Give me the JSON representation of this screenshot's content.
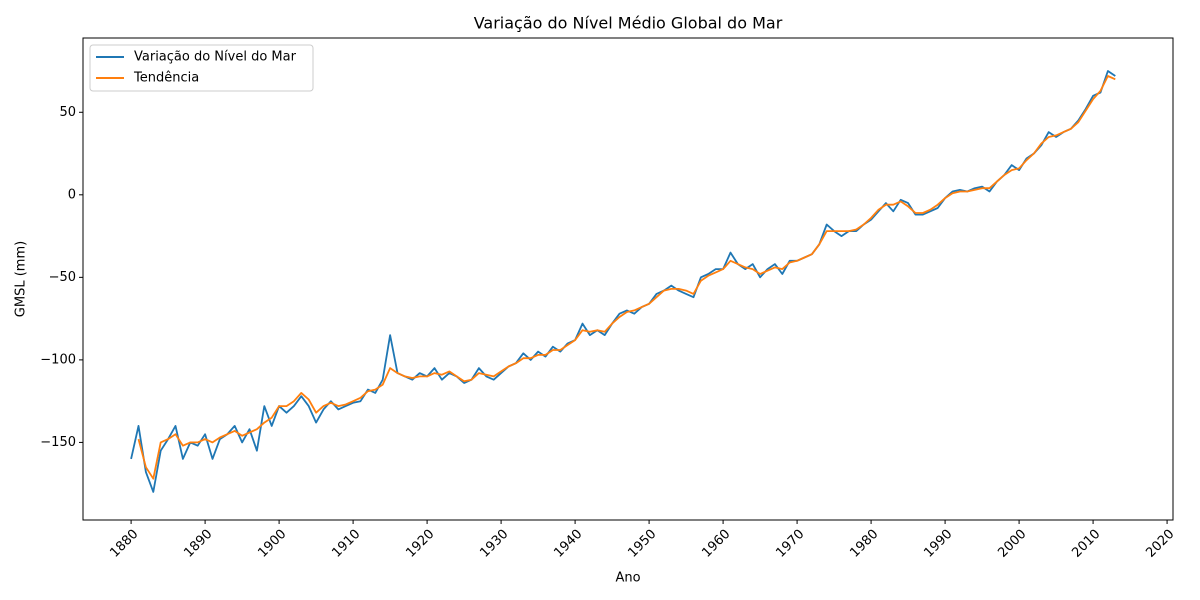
{
  "chart_data": {
    "type": "line",
    "title": "Variação do Nível Médio Global do Mar",
    "x_label": "Ano",
    "y_label": "GMSL (mm)",
    "x": [
      1880,
      1881,
      1882,
      1883,
      1884,
      1885,
      1886,
      1887,
      1888,
      1889,
      1890,
      1891,
      1892,
      1893,
      1894,
      1895,
      1896,
      1897,
      1898,
      1899,
      1900,
      1901,
      1902,
      1903,
      1904,
      1905,
      1906,
      1907,
      1908,
      1909,
      1910,
      1911,
      1912,
      1913,
      1914,
      1915,
      1916,
      1917,
      1918,
      1919,
      1920,
      1921,
      1922,
      1923,
      1924,
      1925,
      1926,
      1927,
      1928,
      1929,
      1930,
      1931,
      1932,
      1933,
      1934,
      1935,
      1936,
      1937,
      1938,
      1939,
      1940,
      1941,
      1942,
      1943,
      1944,
      1945,
      1946,
      1947,
      1948,
      1949,
      1950,
      1951,
      1952,
      1953,
      1954,
      1955,
      1956,
      1957,
      1958,
      1959,
      1960,
      1961,
      1962,
      1963,
      1964,
      1965,
      1966,
      1967,
      1968,
      1969,
      1970,
      1971,
      1972,
      1973,
      1974,
      1975,
      1976,
      1977,
      1978,
      1979,
      1980,
      1981,
      1982,
      1983,
      1984,
      1985,
      1986,
      1987,
      1988,
      1989,
      1990,
      1991,
      1992,
      1993,
      1994,
      1995,
      1996,
      1997,
      1998,
      1999,
      2000,
      2001,
      2002,
      2003,
      2004,
      2005,
      2006,
      2007,
      2008,
      2009,
      2010,
      2011,
      2012,
      2013
    ],
    "series": [
      {
        "name": "Variação do Nível do Mar",
        "color": "#1f77b4",
        "values": [
          -160,
          -140,
          -168,
          -180,
          -155,
          -148,
          -140,
          -160,
          -150,
          -152,
          -145,
          -160,
          -148,
          -145,
          -140,
          -150,
          -142,
          -155,
          -128,
          -140,
          -128,
          -132,
          -128,
          -122,
          -128,
          -138,
          -130,
          -125,
          -130,
          -128,
          -126,
          -125,
          -118,
          -120,
          -112,
          -85,
          -108,
          -110,
          -112,
          -108,
          -110,
          -105,
          -112,
          -108,
          -110,
          -114,
          -112,
          -105,
          -110,
          -112,
          -108,
          -104,
          -102,
          -96,
          -100,
          -95,
          -98,
          -92,
          -95,
          -90,
          -88,
          -78,
          -85,
          -82,
          -85,
          -78,
          -72,
          -70,
          -72,
          -68,
          -66,
          -60,
          -58,
          -55,
          -58,
          -60,
          -62,
          -50,
          -48,
          -45,
          -45,
          -35,
          -42,
          -45,
          -42,
          -50,
          -45,
          -42,
          -48,
          -40,
          -40,
          -38,
          -36,
          -30,
          -18,
          -22,
          -25,
          -22,
          -22,
          -18,
          -15,
          -10,
          -5,
          -10,
          -3,
          -5,
          -12,
          -12,
          -10,
          -8,
          -2,
          2,
          3,
          2,
          4,
          5,
          2,
          8,
          12,
          18,
          15,
          22,
          25,
          30,
          38,
          35,
          38,
          40,
          45,
          52,
          60,
          62,
          75,
          72
        ]
      },
      {
        "name": "Tendência",
        "color": "#ff7f0e",
        "values": [
          null,
          -148,
          -165,
          -172,
          -150,
          -148,
          -145,
          -152,
          -150,
          -150,
          -148,
          -150,
          -147,
          -145,
          -143,
          -146,
          -144,
          -142,
          -138,
          -135,
          -128,
          -128,
          -125,
          -120,
          -124,
          -132,
          -128,
          -126,
          -128,
          -127,
          -125,
          -123,
          -119,
          -118,
          -115,
          -105,
          -108,
          -110,
          -111,
          -110,
          -110,
          -108,
          -109,
          -107,
          -110,
          -113,
          -112,
          -108,
          -109,
          -110,
          -107,
          -104,
          -102,
          -99,
          -99,
          -97,
          -97,
          -94,
          -94,
          -91,
          -88,
          -82,
          -83,
          -82,
          -83,
          -78,
          -74,
          -71,
          -70,
          -68,
          -66,
          -62,
          -58,
          -57,
          -57,
          -58,
          -60,
          -52,
          -49,
          -47,
          -45,
          -40,
          -42,
          -44,
          -45,
          -48,
          -46,
          -44,
          -45,
          -41,
          -40,
          -38,
          -36,
          -30,
          -22,
          -22,
          -22,
          -22,
          -21,
          -18,
          -14,
          -9,
          -6,
          -6,
          -4,
          -7,
          -11,
          -11,
          -9,
          -6,
          -2,
          1,
          2,
          2,
          3,
          4,
          4,
          8,
          12,
          15,
          16,
          21,
          25,
          31,
          35,
          36,
          38,
          40,
          44,
          51,
          58,
          63,
          72,
          70
        ]
      }
    ],
    "xlim": [
      1873.5,
      2020.8
    ],
    "xticks": [
      1880,
      1890,
      1900,
      1910,
      1920,
      1930,
      1940,
      1950,
      1960,
      1970,
      1980,
      1990,
      2000,
      2010,
      2020
    ],
    "ylim": [
      -197,
      95
    ],
    "yticks": [
      {
        "value": -150,
        "label": "−150"
      },
      {
        "value": -100,
        "label": "−100"
      },
      {
        "value": -50,
        "label": "−50"
      },
      0,
      50
    ],
    "legend": "upper left"
  }
}
